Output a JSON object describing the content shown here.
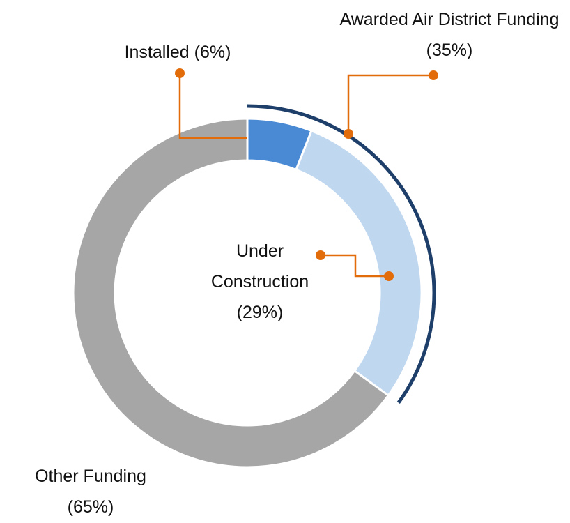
{
  "chart_data": {
    "type": "donut",
    "categories": [
      "Installed",
      "Under Construction",
      "Other Funding"
    ],
    "values": [
      6,
      29,
      65
    ],
    "value_labels": [
      "(6%)",
      "(29%)",
      "(65%)"
    ],
    "colors": [
      "#4a8ad4",
      "#c0d7f0",
      "#a6a6a6"
    ],
    "annotation": {
      "text": "Awarded Air District Funding",
      "value": 35,
      "value_label": "(35%)",
      "color": "#1f3f6b"
    }
  }
}
